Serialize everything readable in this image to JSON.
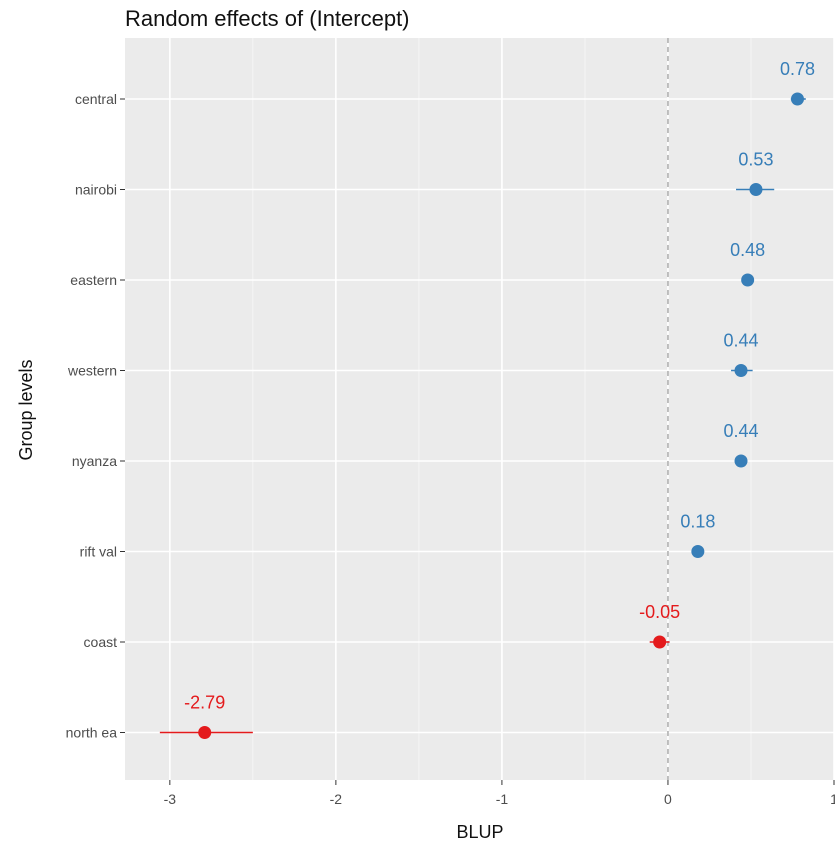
{
  "chart_data": {
    "type": "scatter",
    "title": "Random effects of  (Intercept)",
    "xlabel": "BLUP",
    "ylabel": "Group levels",
    "xlim": [
      -3.27,
      1.0
    ],
    "xticks": [
      -3,
      -2,
      -1,
      0,
      1
    ],
    "xtick_labels": [
      "-3",
      "-2",
      "-1",
      "0",
      "1"
    ],
    "reference_line_x": 0,
    "grid": true,
    "categories": [
      "central",
      "nairobi",
      "eastern",
      "western",
      "nyanza",
      "rift val",
      "coast",
      "north ea"
    ],
    "values": [
      0.78,
      0.53,
      0.48,
      0.44,
      0.44,
      0.18,
      -0.05,
      -2.79
    ],
    "labels": [
      "0.78",
      "0.53",
      "0.48",
      "0.44",
      "0.44",
      "0.18",
      "-0.05",
      "-2.79"
    ],
    "ci_low": [
      0.74,
      0.41,
      0.45,
      0.38,
      0.41,
      0.15,
      -0.11,
      -3.06
    ],
    "ci_high": [
      0.83,
      0.64,
      0.51,
      0.51,
      0.47,
      0.21,
      0.01,
      -2.5
    ],
    "colors": {
      "positive": "#377eb8",
      "negative": "#e41a1c"
    }
  }
}
